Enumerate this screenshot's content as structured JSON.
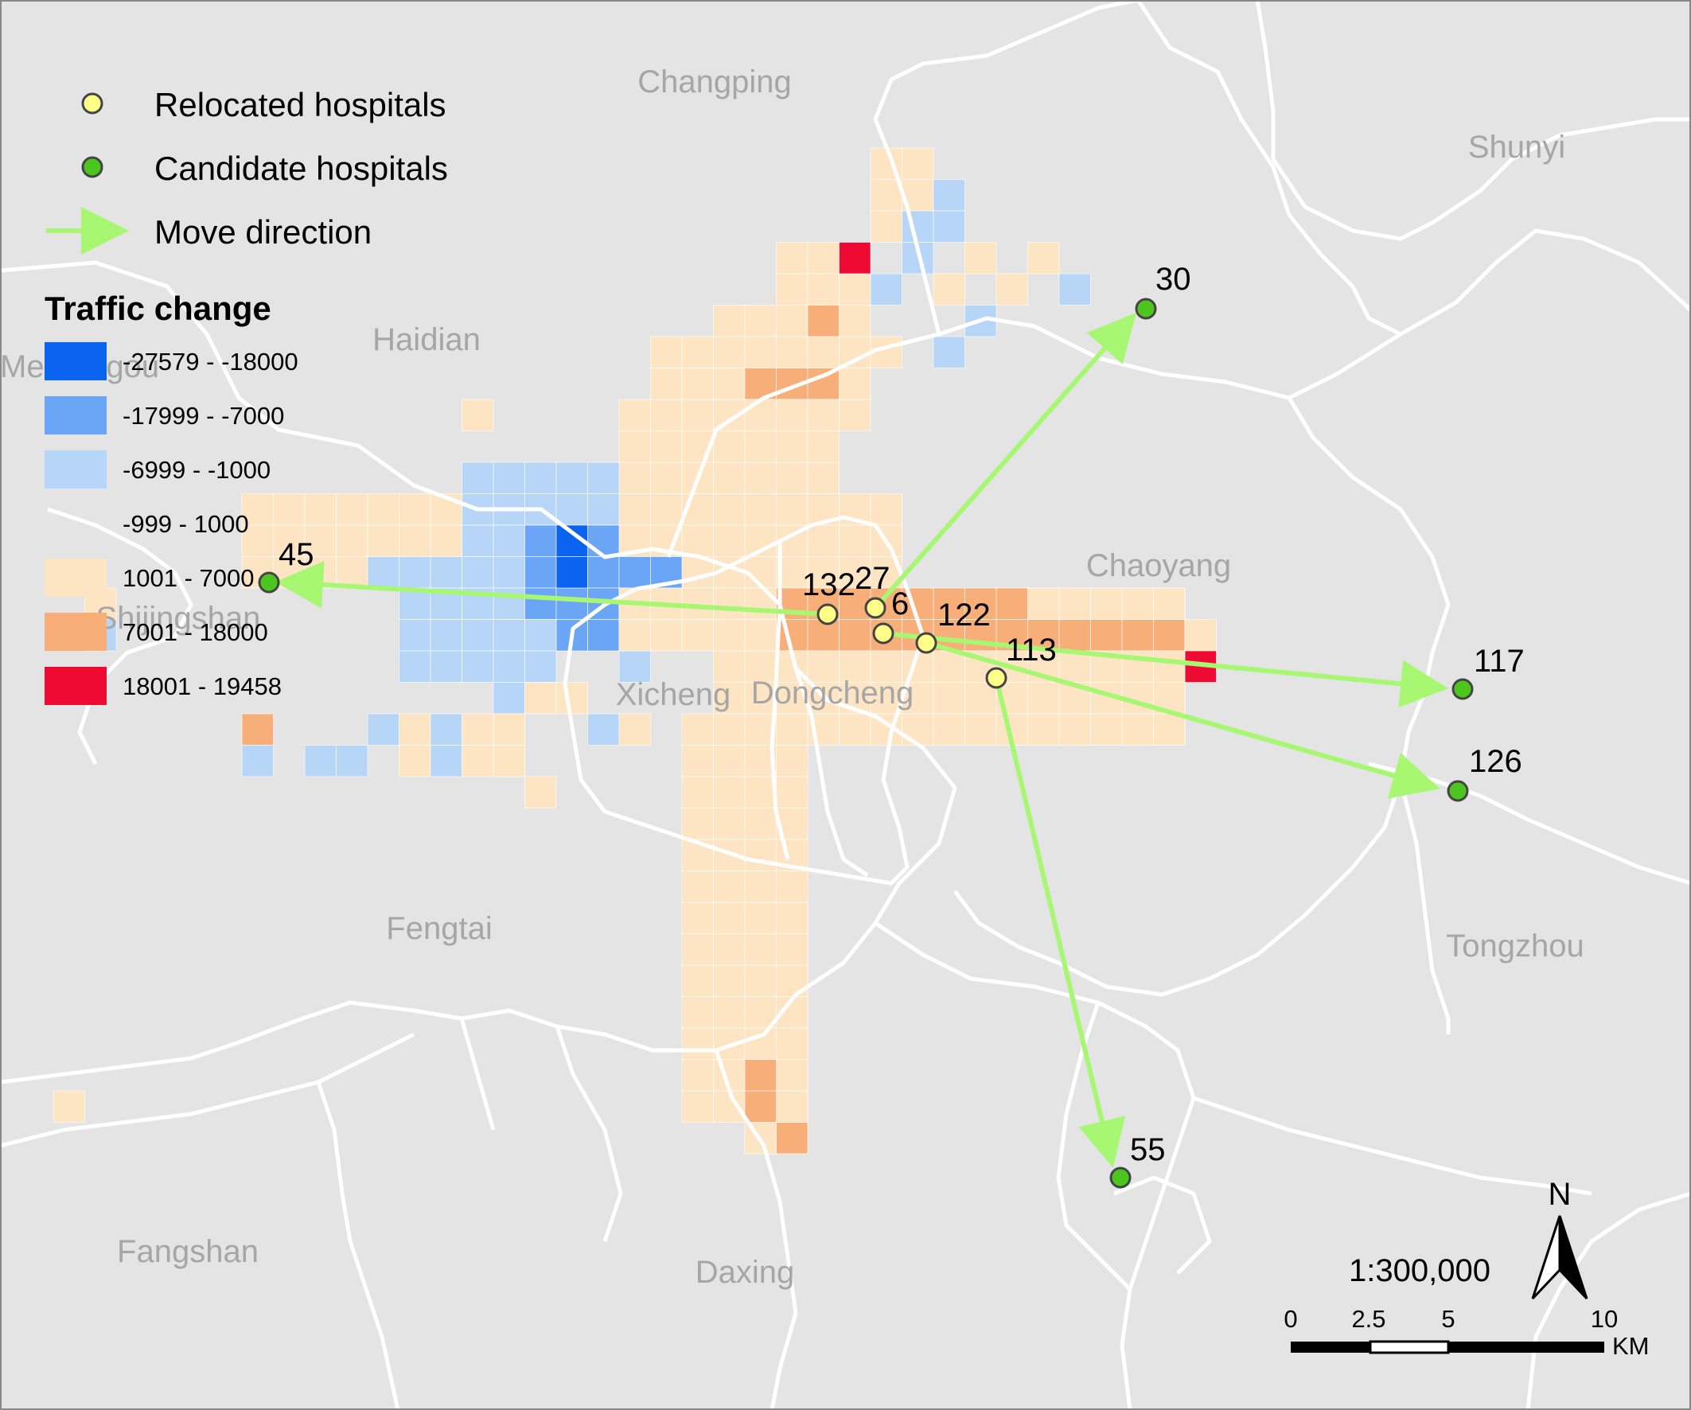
{
  "districts": [
    {
      "id": "changping",
      "name": "Changping"
    },
    {
      "id": "shunyi",
      "name": "Shunyi"
    },
    {
      "id": "haidian",
      "name": "Haidian"
    },
    {
      "id": "mentougou",
      "name": "Mentougou"
    },
    {
      "id": "chaoyang",
      "name": "Chaoyang"
    },
    {
      "id": "shijingshan",
      "name": "Shijingshan"
    },
    {
      "id": "xicheng",
      "name": "Xicheng"
    },
    {
      "id": "dongcheng",
      "name": "Dongcheng"
    },
    {
      "id": "fengtai",
      "name": "Fengtai"
    },
    {
      "id": "tongzhou",
      "name": "Tongzhou"
    },
    {
      "id": "fangshan",
      "name": "Fangshan"
    },
    {
      "id": "daxing",
      "name": "Daxing"
    }
  ],
  "legend": {
    "relocated_label": "Relocated hospitals",
    "candidate_label": "Candidate hospitals",
    "move_label": "Move direction",
    "traffic_title": "Traffic change",
    "classes": [
      {
        "label": "-27579 - -18000",
        "color": "#0a64f0"
      },
      {
        "label": "-17999 - -7000",
        "color": "#6aa6f5"
      },
      {
        "label": "-6999 - -1000",
        "color": "#b7d6f7"
      },
      {
        "label": "-999 - 1000",
        "color": "#e4e4e4"
      },
      {
        "label": "1001 - 7000",
        "color": "#fde4c3"
      },
      {
        "label": "7001 - 18000",
        "color": "#f7ae78"
      },
      {
        "label": "18001 - 19458",
        "color": "#ee0a32"
      }
    ]
  },
  "colors": {
    "background": "#e4e4e4",
    "boundary": "#ffffff",
    "relocated_fill": "#ffff88",
    "candidate_fill": "#4cc61e",
    "arrow": "#a7f773"
  },
  "relocated_hospitals": [
    {
      "id": "132",
      "label": "132"
    },
    {
      "id": "27",
      "label": "27"
    },
    {
      "id": "6",
      "label": "6"
    },
    {
      "id": "122",
      "label": "122"
    },
    {
      "id": "113",
      "label": "113"
    }
  ],
  "candidate_hospitals": [
    {
      "id": "45",
      "label": "45"
    },
    {
      "id": "30",
      "label": "30"
    },
    {
      "id": "117",
      "label": "117"
    },
    {
      "id": "126",
      "label": "126"
    },
    {
      "id": "55",
      "label": "55"
    }
  ],
  "moves": [
    {
      "from": "132",
      "to": "45"
    },
    {
      "from": "27",
      "to": "30"
    },
    {
      "from": "6",
      "to": "117"
    },
    {
      "from": "122",
      "to": "126"
    },
    {
      "from": "113",
      "to": "55"
    }
  ],
  "scale": {
    "ratio": "1:300,000",
    "ticks": [
      "0",
      "2.5",
      "5",
      "10"
    ],
    "unit": "KM",
    "north": "N"
  }
}
